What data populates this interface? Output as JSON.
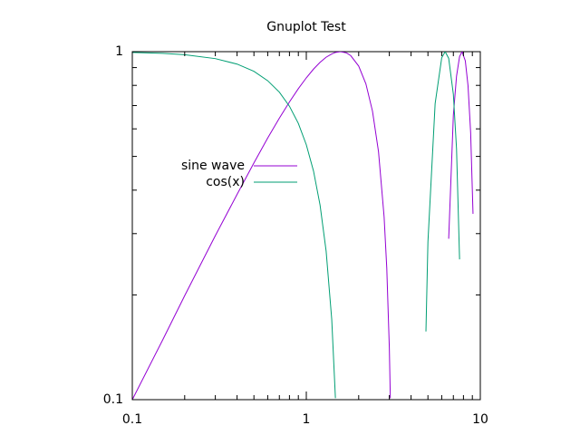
{
  "chart_data": {
    "type": "line",
    "title": "Gnuplot Test",
    "x": [
      0.1,
      0.15,
      0.2,
      0.3,
      0.4,
      0.5,
      0.6,
      0.7,
      0.8,
      0.9,
      1.0,
      1.1,
      1.2,
      1.3,
      1.4,
      1.47,
      1.57,
      1.7,
      1.8,
      2.0,
      2.2,
      2.4,
      2.6,
      2.8,
      2.9,
      3.0,
      3.04,
      4.87,
      5.0,
      5.5,
      6.0,
      6.28,
      6.58,
      7.0,
      7.3,
      7.6,
      7.85,
      8.2,
      8.5,
      8.8,
      9.08
    ],
    "series": [
      {
        "name": "sine wave",
        "color": "#9400d3",
        "values": [
          0.1,
          0.149,
          0.199,
          0.296,
          0.389,
          0.479,
          0.565,
          0.644,
          0.717,
          0.783,
          0.841,
          0.891,
          0.932,
          0.964,
          0.985,
          0.995,
          1.0,
          0.992,
          0.974,
          0.909,
          0.808,
          0.675,
          0.516,
          0.335,
          0.239,
          0.141,
          0.101,
          null,
          null,
          null,
          null,
          null,
          0.29,
          0.657,
          0.85,
          0.968,
          1.0,
          0.941,
          0.798,
          0.585,
          0.342
        ]
      },
      {
        "name": "cos(x)",
        "color": "#009e73",
        "values": [
          0.995,
          0.989,
          0.98,
          0.955,
          0.921,
          0.878,
          0.825,
          0.765,
          0.697,
          0.622,
          0.54,
          0.454,
          0.362,
          0.267,
          0.17,
          0.101,
          null,
          null,
          null,
          null,
          null,
          null,
          null,
          null,
          null,
          null,
          null,
          0.157,
          0.284,
          0.709,
          0.96,
          1.0,
          0.957,
          0.754,
          0.526,
          0.253,
          null,
          null,
          null,
          null,
          null
        ]
      }
    ],
    "xlim": [
      0.1,
      10
    ],
    "ylim": [
      0.1,
      1
    ],
    "xticks": [
      0.1,
      1,
      10
    ],
    "yticks": [
      0.1,
      1
    ],
    "xminor": [
      0.2,
      0.3,
      0.4,
      0.5,
      0.6,
      0.7,
      0.8,
      0.9,
      2,
      3,
      4,
      5,
      6,
      7,
      8,
      9
    ],
    "yminor": [
      0.2,
      0.3,
      0.4,
      0.5,
      0.6,
      0.7,
      0.8,
      0.9
    ],
    "xlog": true,
    "ylog": true,
    "grid": false
  }
}
